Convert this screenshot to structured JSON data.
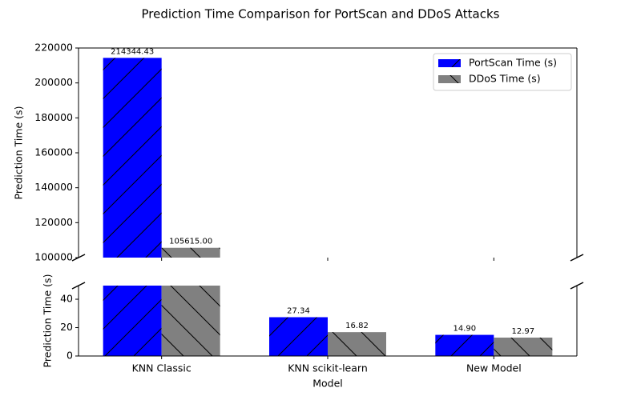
{
  "chart_data": {
    "type": "broken-bar",
    "title": "Prediction Time Comparison for PortScan and DDoS Attacks",
    "x_label": "Model",
    "categories": [
      "KNN Classic",
      "KNN scikit-learn",
      "New Model"
    ],
    "series": [
      {
        "name": "PortScan Time (s)",
        "color": "#0000ff",
        "hatch": "/",
        "values": [
          214344.43,
          27.34,
          14.9
        ],
        "value_labels": [
          "214344.43",
          "27.34",
          "14.90"
        ]
      },
      {
        "name": "DDoS Time (s)",
        "color": "#808080",
        "hatch": "\\",
        "values": [
          105615,
          16.82,
          12.97
        ],
        "value_labels": [
          "105615.00",
          "16.82",
          "12.97"
        ]
      }
    ],
    "panels": [
      {
        "y_label": "Prediction Time (s)",
        "ylim": [
          100000,
          220000
        ],
        "yticks": [
          100000,
          120000,
          140000,
          160000,
          180000,
          200000,
          220000
        ]
      },
      {
        "y_label": "Prediction Time (s)",
        "ylim": [
          0,
          49.6
        ],
        "yticks": [
          0,
          20,
          40
        ]
      }
    ],
    "legend": "upper right"
  }
}
